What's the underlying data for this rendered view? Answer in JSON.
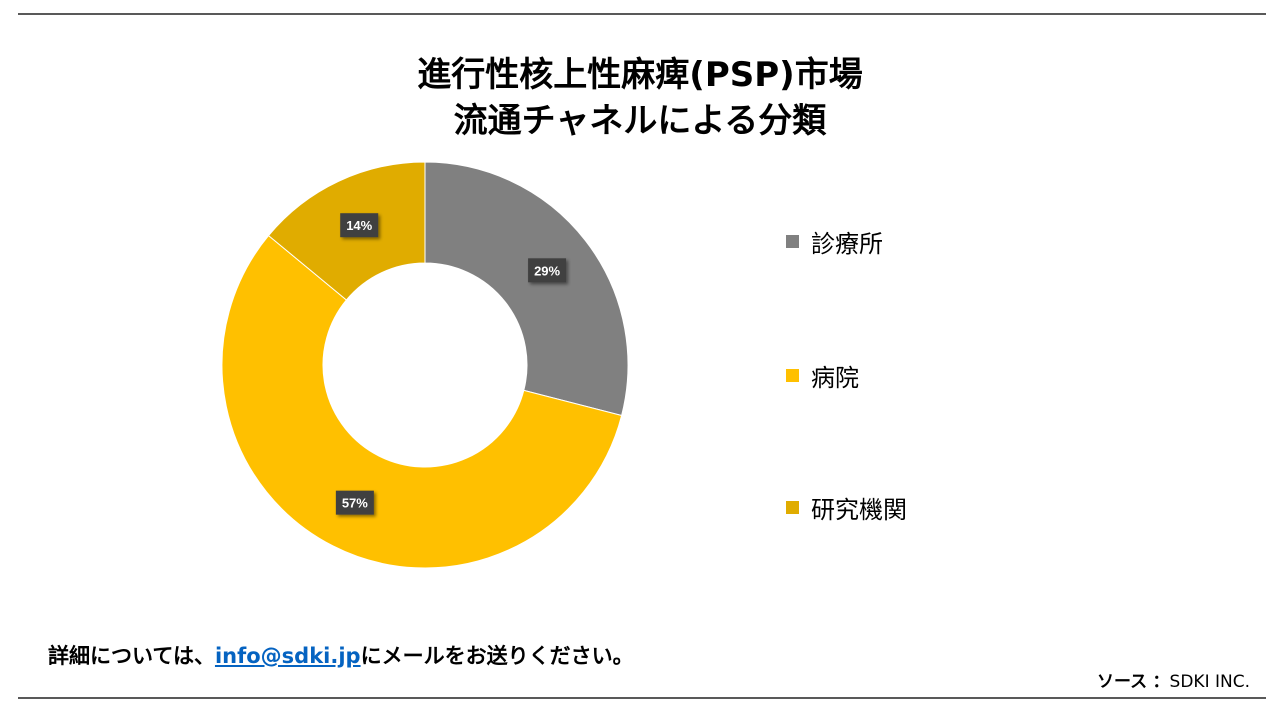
{
  "title": {
    "line1": "進行性核上性麻痺(PSP)市場",
    "line2": "流通チャネルによる分類"
  },
  "chart_data": {
    "type": "pie",
    "variant": "donut",
    "categories": [
      "診療所",
      "病院",
      "研究機関"
    ],
    "values": [
      29,
      57,
      14
    ],
    "data_labels": [
      "29%",
      "57%",
      "14%"
    ],
    "colors": [
      "#808080",
      "#FFC000",
      "#E0AC00"
    ],
    "title": "進行性核上性麻痺(PSP)市場 流通チャネルによる分類",
    "legend_position": "right"
  },
  "footer": {
    "prefix": "詳細については、",
    "email": "info@sdki.jp",
    "suffix": "にメールをお送りください。"
  },
  "source": {
    "label": "ソース",
    "separator": "：",
    "value": "SDKI INC."
  }
}
